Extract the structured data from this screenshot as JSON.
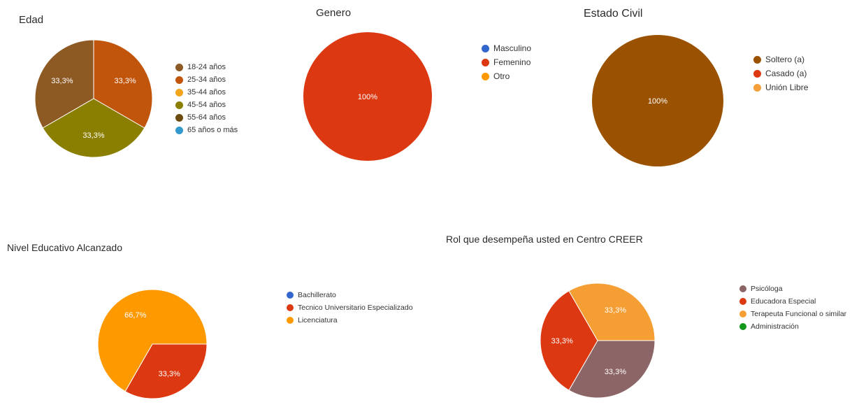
{
  "chart_data": [
    {
      "type": "pie",
      "title": "Edad",
      "categories": [
        "18-24 años",
        "25-34 años",
        "35-44 años",
        "45-54 años",
        "55-64 años",
        "65 años o más"
      ],
      "values": [
        33.3,
        33.3,
        0,
        33.3,
        0,
        0
      ],
      "colors": [
        "#8d5a24",
        "#c0550b",
        "#f2a41b",
        "#8a7f00",
        "#6b4c0e",
        "#3399cc"
      ],
      "slice_labels": [
        "33,3%",
        "33,3%",
        "",
        "33,3%",
        "",
        ""
      ],
      "legend_position": "right"
    },
    {
      "type": "pie",
      "title": "Genero",
      "categories": [
        "Masculino",
        "Femenino",
        "Otro"
      ],
      "values": [
        0,
        100,
        0
      ],
      "colors": [
        "#3366cc",
        "#dc3912",
        "#ff9900"
      ],
      "slice_labels": [
        "",
        "100%",
        ""
      ],
      "legend_position": "right"
    },
    {
      "type": "pie",
      "title": "Estado Civil",
      "categories": [
        "Soltero (a)",
        "Casado (a)",
        "Unión Libre"
      ],
      "values": [
        100,
        0,
        0
      ],
      "colors": [
        "#9b5200",
        "#dc3912",
        "#f5a03a"
      ],
      "slice_labels": [
        "100%",
        "",
        ""
      ],
      "legend_position": "right"
    },
    {
      "type": "pie",
      "title": "Nivel Educativo Alcanzado",
      "categories": [
        "Bachillerato",
        "Tecnico Universitario Especializado",
        "Licenciatura"
      ],
      "values": [
        0,
        33.3,
        66.7
      ],
      "colors": [
        "#3366cc",
        "#dc3912",
        "#ff9900"
      ],
      "slice_labels": [
        "",
        "33,3%",
        "66,7%"
      ],
      "legend_position": "right"
    },
    {
      "type": "pie",
      "title": "Rol que desempeña usted en Centro CREER",
      "categories": [
        "Psicóloga",
        "Educadora Especial",
        "Terapeuta Funcional o similar",
        "Administración"
      ],
      "values": [
        33.3,
        33.3,
        33.3,
        0
      ],
      "colors": [
        "#8c6566",
        "#dc3912",
        "#f59e33",
        "#109618"
      ],
      "slice_labels": [
        "33,3%",
        "33,3%",
        "33,3%",
        ""
      ],
      "legend_position": "right"
    }
  ]
}
